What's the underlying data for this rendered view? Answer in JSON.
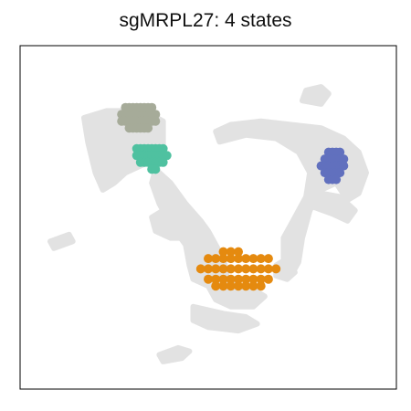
{
  "chart_data": {
    "type": "scatter",
    "title": "sgMRPL27: 4 states",
    "xlabel": "",
    "ylabel": "",
    "axes_ticks": false,
    "grid": false,
    "legend": "none",
    "xlim": [
      0,
      100
    ],
    "ylim": [
      0,
      100
    ],
    "background_color": "#e2e2e2",
    "background_regions": [
      {
        "points": [
          [
            17,
            79
          ],
          [
            23,
            81
          ],
          [
            33,
            81
          ],
          [
            38,
            78
          ],
          [
            38,
            71
          ],
          [
            34,
            66
          ],
          [
            28,
            63
          ],
          [
            25,
            60
          ],
          [
            22,
            58
          ],
          [
            20,
            63
          ],
          [
            18,
            72
          ]
        ]
      },
      {
        "points": [
          [
            36,
            64
          ],
          [
            40,
            60
          ],
          [
            44,
            54
          ],
          [
            48,
            49
          ],
          [
            50,
            46
          ],
          [
            52,
            42
          ],
          [
            54,
            38
          ],
          [
            55,
            34
          ],
          [
            54,
            31
          ],
          [
            50,
            30
          ],
          [
            46,
            32
          ],
          [
            45,
            36
          ],
          [
            44,
            42
          ],
          [
            40,
            48
          ],
          [
            37,
            54
          ],
          [
            35,
            60
          ]
        ]
      },
      {
        "points": [
          [
            50,
            30
          ],
          [
            56,
            31
          ],
          [
            62,
            29
          ],
          [
            65,
            27
          ],
          [
            62,
            24
          ],
          [
            56,
            24
          ],
          [
            52,
            26
          ]
        ]
      },
      {
        "points": [
          [
            46,
            24
          ],
          [
            54,
            22
          ],
          [
            60,
            21
          ],
          [
            63,
            19
          ],
          [
            58,
            17
          ],
          [
            50,
            18
          ],
          [
            46,
            20
          ]
        ]
      },
      {
        "points": [
          [
            53,
            72
          ],
          [
            60,
            74
          ],
          [
            68,
            73
          ],
          [
            74,
            69
          ],
          [
            77,
            63
          ],
          [
            76,
            56
          ],
          [
            73,
            50
          ],
          [
            70,
            44
          ],
          [
            70,
            38
          ],
          [
            72,
            33
          ],
          [
            74,
            37
          ],
          [
            75,
            44
          ],
          [
            77,
            52
          ],
          [
            80,
            58
          ],
          [
            84,
            60
          ],
          [
            87,
            55
          ],
          [
            90,
            57
          ],
          [
            92,
            63
          ],
          [
            90,
            69
          ],
          [
            86,
            73
          ],
          [
            80,
            76
          ],
          [
            72,
            77
          ],
          [
            64,
            78
          ],
          [
            56,
            77
          ],
          [
            52,
            75
          ]
        ]
      },
      {
        "points": [
          [
            78,
            53
          ],
          [
            83,
            51
          ],
          [
            87,
            49
          ],
          [
            89,
            52
          ],
          [
            85,
            56
          ],
          [
            80,
            57
          ]
        ]
      },
      {
        "points": [
          [
            75,
            84
          ],
          [
            80,
            83
          ],
          [
            82,
            86
          ],
          [
            80,
            88
          ],
          [
            76,
            87
          ]
        ]
      },
      {
        "points": [
          [
            36,
            46
          ],
          [
            40,
            44
          ],
          [
            46,
            44
          ],
          [
            48,
            48
          ],
          [
            44,
            52
          ],
          [
            38,
            52
          ],
          [
            35,
            50
          ]
        ]
      },
      {
        "points": [
          [
            8,
            43
          ],
          [
            13,
            45
          ],
          [
            14,
            43
          ],
          [
            9,
            41
          ]
        ]
      },
      {
        "points": [
          [
            37,
            10
          ],
          [
            42,
            12
          ],
          [
            45,
            11
          ],
          [
            43,
            9
          ],
          [
            38,
            8
          ]
        ]
      },
      {
        "points": [
          [
            68,
            36
          ],
          [
            71,
            38
          ],
          [
            73,
            34
          ],
          [
            71,
            32
          ],
          [
            68,
            33
          ]
        ]
      }
    ],
    "series": [
      {
        "color": "#a6ab99",
        "x": [
          27,
          28,
          29,
          30,
          31,
          32,
          33,
          34,
          35,
          36,
          27,
          28,
          29,
          30,
          31,
          32,
          33,
          34,
          35,
          36,
          28,
          29,
          30,
          31,
          32,
          33,
          34,
          35,
          29,
          30,
          31,
          32,
          33,
          34
        ],
        "y": [
          80,
          80,
          80,
          80,
          80,
          80,
          80,
          80,
          80,
          80,
          78,
          78,
          78,
          78,
          78,
          78,
          78,
          78,
          78,
          78,
          82,
          82,
          82,
          82,
          82,
          82,
          82,
          82,
          76,
          76,
          76,
          76,
          76,
          76
        ]
      },
      {
        "color": "#4fc1a0",
        "x": [
          31,
          32,
          33,
          34,
          35,
          36,
          37,
          38,
          31,
          32,
          33,
          34,
          35,
          36,
          37,
          38,
          39,
          32,
          33,
          34,
          35,
          36,
          37,
          38,
          35,
          36
        ],
        "y": [
          70,
          70,
          70,
          70,
          70,
          70,
          70,
          70,
          68,
          68,
          68,
          68,
          68,
          68,
          68,
          68,
          68,
          66,
          66,
          66,
          66,
          66,
          66,
          66,
          64,
          64
        ]
      },
      {
        "color": "#e58a0f",
        "x": [
          50,
          52,
          54,
          56,
          58,
          60,
          62,
          64,
          66,
          48,
          50,
          52,
          54,
          56,
          58,
          60,
          62,
          64,
          66,
          68,
          50,
          52,
          54,
          56,
          58,
          60,
          62,
          64,
          66,
          52,
          54,
          56,
          58,
          60,
          62,
          64,
          54,
          56,
          58
        ],
        "y": [
          38,
          38,
          38,
          38,
          38,
          38,
          38,
          38,
          38,
          35,
          35,
          35,
          35,
          35,
          35,
          35,
          35,
          35,
          35,
          35,
          32,
          32,
          32,
          32,
          32,
          32,
          32,
          32,
          32,
          30,
          30,
          30,
          30,
          30,
          30,
          30,
          40,
          40,
          40
        ]
      },
      {
        "color": "#6170be",
        "x": [
          82,
          83,
          84,
          85,
          81,
          82,
          83,
          84,
          85,
          86,
          80,
          81,
          82,
          83,
          84,
          85,
          86,
          81,
          82,
          83,
          84,
          85,
          82,
          83,
          84
        ],
        "y": [
          69,
          69,
          69,
          69,
          67,
          67,
          67,
          67,
          67,
          67,
          65,
          65,
          65,
          65,
          65,
          65,
          65,
          63,
          63,
          63,
          63,
          63,
          61,
          61,
          61
        ]
      }
    ]
  }
}
